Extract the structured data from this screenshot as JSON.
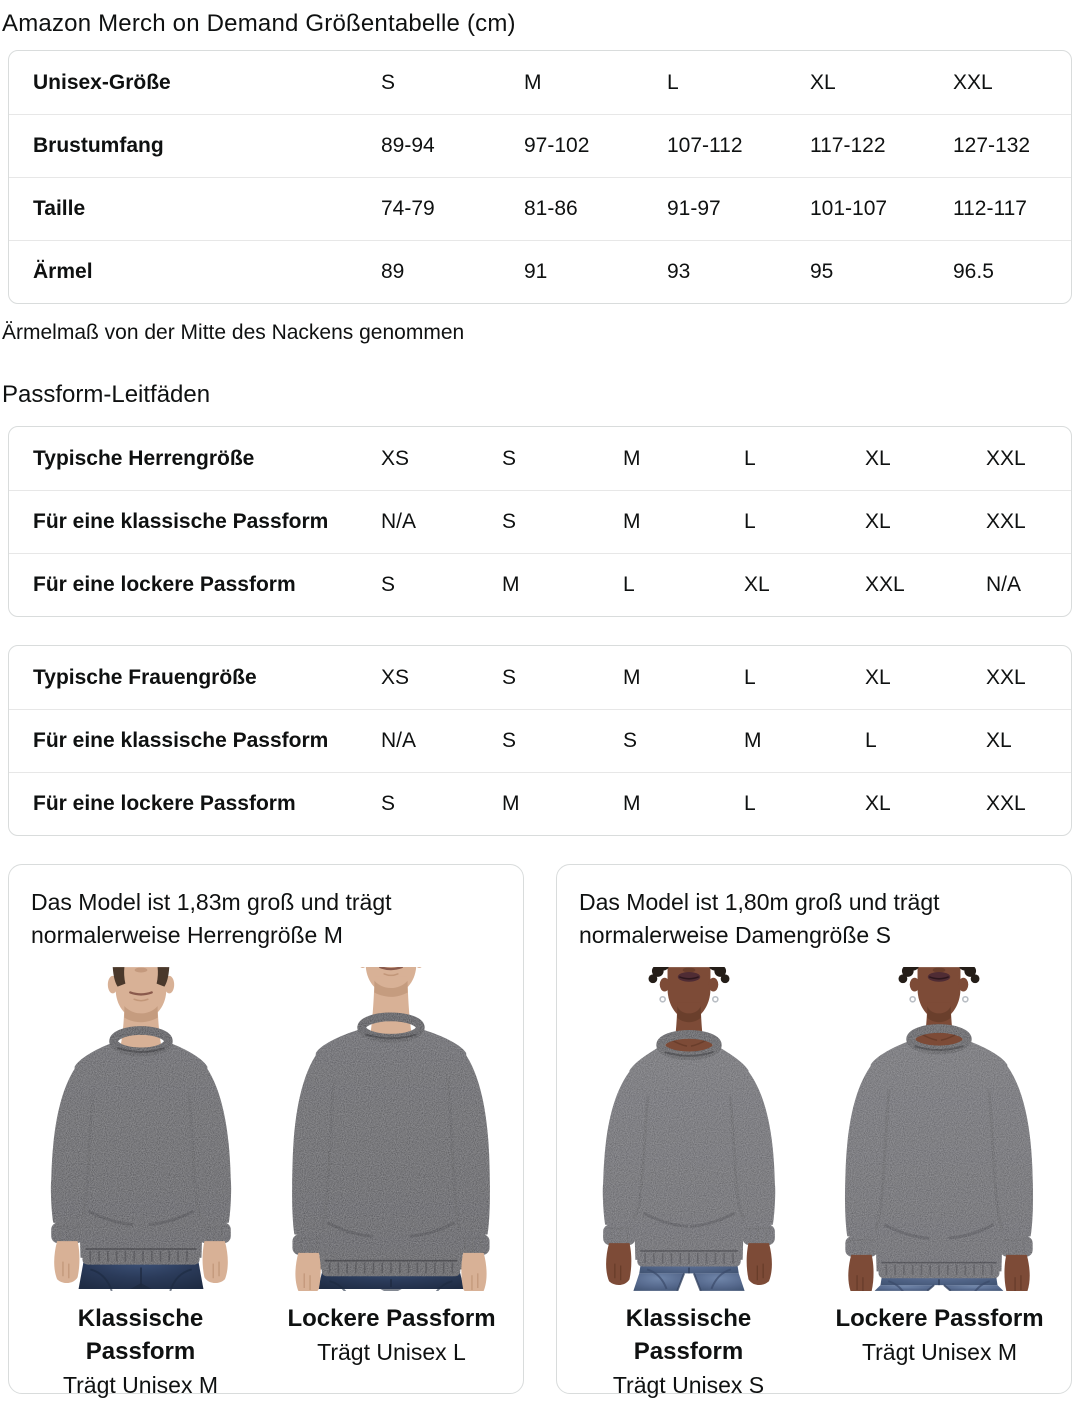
{
  "page": {
    "title": "Amazon Merch on Demand Größentabelle (cm)",
    "note": "Ärmelmaß von der Mitte des Nackens genommen",
    "fit_guides_heading": "Passform-Leitfäden"
  },
  "size_table": {
    "rows": [
      {
        "label": "Unisex-Größe",
        "values": [
          "S",
          "M",
          "L",
          "XL",
          "XXL"
        ]
      },
      {
        "label": "Brustumfang",
        "values": [
          "89-94",
          "97-102",
          "107-112",
          "117-122",
          "127-132"
        ]
      },
      {
        "label": "Taille",
        "values": [
          "74-79",
          "81-86",
          "91-97",
          "101-107",
          "112-117"
        ]
      },
      {
        "label": "Ärmel",
        "values": [
          "89",
          "91",
          "93",
          "95",
          "96.5"
        ]
      }
    ]
  },
  "mens_fit_table": {
    "rows": [
      {
        "label": "Typische Herrengröße",
        "values": [
          "XS",
          "S",
          "M",
          "L",
          "XL",
          "XXL"
        ]
      },
      {
        "label": "Für eine klassische Passform",
        "values": [
          "N/A",
          "S",
          "M",
          "L",
          "XL",
          "XXL"
        ]
      },
      {
        "label": "Für eine lockere Passform",
        "values": [
          "S",
          "M",
          "L",
          "XL",
          "XXL",
          "N/A"
        ]
      }
    ]
  },
  "womens_fit_table": {
    "rows": [
      {
        "label": "Typische Frauengröße",
        "values": [
          "XS",
          "S",
          "M",
          "L",
          "XL",
          "XXL"
        ]
      },
      {
        "label": "Für eine klassische Passform",
        "values": [
          "N/A",
          "S",
          "S",
          "M",
          "L",
          "XL"
        ]
      },
      {
        "label": "Für eine lockere Passform",
        "values": [
          "S",
          "M",
          "M",
          "L",
          "XL",
          "XXL"
        ]
      }
    ]
  },
  "model_cards": [
    {
      "description": "Das Model ist 1,83m groß und trägt normalerweise Herrengröße M",
      "photos": [
        {
          "fit_title": "Klassische Passform",
          "fit_size": "Trägt Unisex M"
        },
        {
          "fit_title": "Lockere Passform",
          "fit_size": "Trägt Unisex L"
        }
      ]
    },
    {
      "description": "Das Model ist 1,80m groß und trägt normalerweise Damengröße S",
      "photos": [
        {
          "fit_title": "Klassische Passform",
          "fit_size": "Trägt Unisex S"
        },
        {
          "fit_title": "Lockere Passform",
          "fit_size": "Trägt Unisex M"
        }
      ]
    }
  ],
  "colors": {
    "text": "#0F1111",
    "table_border": "#D9DCDC",
    "row_divider": "#E7E7E7",
    "sweatshirt_heather_dark": "#46464B",
    "sweatshirt_heather_light": "#57575C",
    "jeans_dark_wash": "#2B3B5A",
    "jeans_medium_wash": "#55688C",
    "skin_light": "#D8B196",
    "skin_dark": "#7D4B37"
  }
}
